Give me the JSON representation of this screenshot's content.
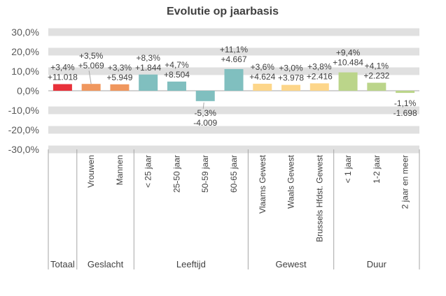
{
  "chart_data": {
    "type": "bar",
    "title": "Evolutie op jaarbasis",
    "xlabel": "",
    "ylabel": "",
    "ylim": [
      -30,
      30
    ],
    "yticks": [
      "30,0%",
      "20,0%",
      "10,0%",
      "0,0%",
      "-10,0%",
      "-20,0%",
      "-30,0%"
    ],
    "grid": "banded horizontal",
    "legend": "none",
    "categories": [
      "Totaal",
      "Vrouwen",
      "Mannen",
      "< 25 jaar",
      "25-50 jaar",
      "50-59 jaar",
      "60-65 jaar",
      "Vlaams Gewest",
      "Waals Gewest",
      "Brussels Hfdst. Gewest",
      "< 1 jaar",
      "1-2 jaar",
      "2 jaar en meer"
    ],
    "category_labels": [
      "",
      "Vrouwen",
      "Mannen",
      "< 25 jaar",
      "25-50 jaar",
      "50-59 jaar",
      "60-65 jaar",
      "Vlaams Gewest",
      "Waals Gewest",
      "Brussels Hfdst. Gewest",
      "< 1 jaar",
      "1-2 jaar",
      "2 jaar en meer"
    ],
    "values": [
      3.4,
      3.5,
      3.3,
      8.3,
      4.7,
      -5.3,
      11.1,
      3.6,
      3.0,
      3.8,
      9.4,
      4.1,
      -1.1
    ],
    "pct_labels": [
      "+3,4%",
      "+3,5%",
      "+3,3%",
      "+8,3%",
      "+4,7%",
      "-5,3%",
      "+11,1%",
      "+3,6%",
      "+3,0%",
      "+3,8%",
      "+9,4%",
      "+4,1%",
      "-1,1%"
    ],
    "abs_labels": [
      "+11.018",
      "+5.069",
      "+5.949",
      "+1.844",
      "+8.504",
      "-4.009",
      "+4.667",
      "+4.624",
      "+3.978",
      "+2.416",
      "+10.484",
      "+2.232",
      "-1.698"
    ],
    "groups": [
      {
        "name": "Totaal",
        "count": 1,
        "color": "#E8313A"
      },
      {
        "name": "Geslacht",
        "count": 2,
        "color": "#F0975E"
      },
      {
        "name": "Leeftijd",
        "count": 4,
        "color": "#80BFBF"
      },
      {
        "name": "Gewest",
        "count": 3,
        "color": "#FDD68A"
      },
      {
        "name": "Duur",
        "count": 3,
        "color": "#BBD58A"
      }
    ]
  }
}
